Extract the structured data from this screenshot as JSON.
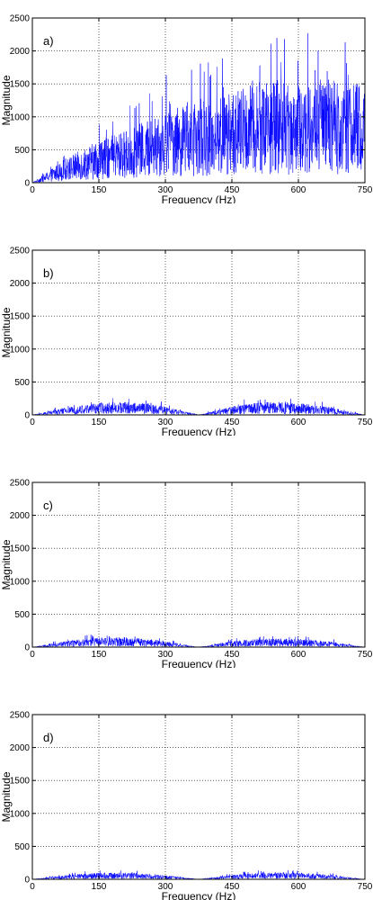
{
  "colors": {
    "series": "#0000ff",
    "axis": "#000000",
    "grid": "#000000",
    "background": "#ffffff"
  },
  "chart_data": [
    {
      "type": "line",
      "panel_label": "a)",
      "xlabel": "Frequency (Hz)",
      "ylabel": "Magnitude",
      "xlim": [
        0,
        750
      ],
      "ylim": [
        0,
        2500
      ],
      "xticks": [
        0,
        150,
        300,
        450,
        600,
        750
      ],
      "yticks": [
        0,
        500,
        1000,
        1500,
        2000,
        2500
      ],
      "grid": true,
      "series": [
        {
          "x": [
            0,
            75,
            150,
            225,
            300,
            375,
            450,
            525,
            600,
            675,
            750
          ],
          "y": [
            0,
            200,
            350,
            450,
            600,
            650,
            750,
            850,
            800,
            850,
            800
          ],
          "peak_max": 2350
        }
      ]
    },
    {
      "type": "line",
      "panel_label": "b)",
      "xlabel": "Frequency (Hz)",
      "ylabel": "Magnitude",
      "xlim": [
        0,
        750
      ],
      "ylim": [
        0,
        2500
      ],
      "xticks": [
        0,
        150,
        300,
        450,
        600,
        750
      ],
      "yticks": [
        0,
        500,
        1000,
        1500,
        2000,
        2500
      ],
      "grid": true,
      "series": [
        {
          "x": [
            0,
            75,
            150,
            225,
            300,
            375,
            450,
            525,
            600,
            675,
            750
          ],
          "y": [
            0,
            60,
            100,
            110,
            70,
            0,
            70,
            110,
            100,
            60,
            0
          ],
          "peak_max": 260
        }
      ]
    },
    {
      "type": "line",
      "panel_label": "c)",
      "xlabel": "Frequency (Hz)",
      "ylabel": "Magnitude",
      "xlim": [
        0,
        750
      ],
      "ylim": [
        0,
        2500
      ],
      "xticks": [
        0,
        150,
        300,
        450,
        600,
        750
      ],
      "yticks": [
        0,
        500,
        1000,
        1500,
        2000,
        2500
      ],
      "grid": true,
      "series": [
        {
          "x": [
            0,
            75,
            150,
            225,
            300,
            375,
            450,
            525,
            600,
            675,
            750
          ],
          "y": [
            0,
            50,
            80,
            80,
            50,
            0,
            50,
            70,
            70,
            45,
            0
          ],
          "peak_max": 190
        }
      ]
    },
    {
      "type": "line",
      "panel_label": "d)",
      "xlabel": "Frequency (Hz)",
      "ylabel": "Magnitude",
      "xlim": [
        0,
        750
      ],
      "ylim": [
        0,
        2500
      ],
      "xticks": [
        0,
        150,
        300,
        450,
        600,
        750
      ],
      "yticks": [
        0,
        500,
        1000,
        1500,
        2000,
        2500
      ],
      "grid": true,
      "series": [
        {
          "x": [
            0,
            75,
            150,
            225,
            300,
            375,
            450,
            525,
            600,
            675,
            750
          ],
          "y": [
            0,
            35,
            55,
            55,
            35,
            0,
            35,
            55,
            55,
            35,
            0
          ],
          "peak_max": 140
        }
      ]
    }
  ]
}
